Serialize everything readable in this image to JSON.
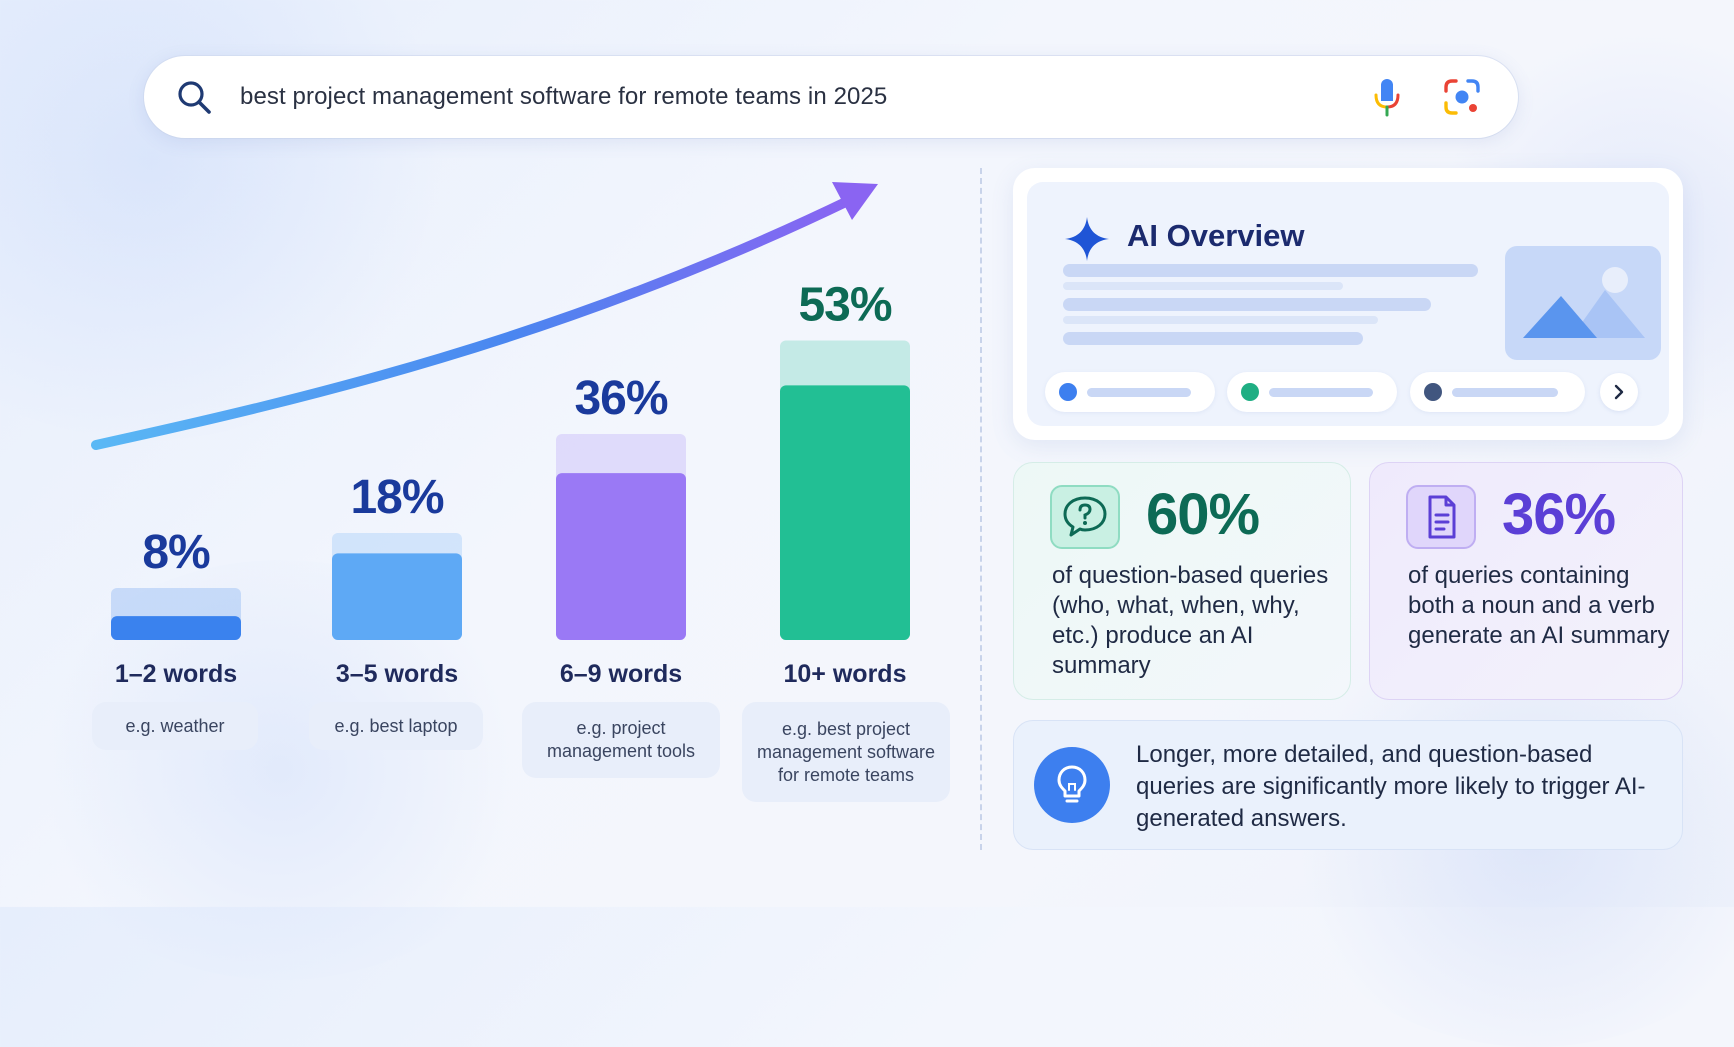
{
  "search": {
    "query": "best project management software for remote teams in 2025",
    "search_icon": "search-icon",
    "mic_icon": "microphone-icon",
    "lens_icon": "camera-lens-icon"
  },
  "chart_data": {
    "type": "bar",
    "categories": [
      "1–2 words",
      "3–5 words",
      "6–9 words",
      "10+ words"
    ],
    "values": [
      8,
      18,
      36,
      53
    ],
    "value_labels": [
      "8%",
      "18%",
      "36%",
      "53%"
    ],
    "examples": [
      "e.g. weather",
      "e.g. best laptop",
      "e.g. project management tools",
      "e.g. best project management software for remote teams"
    ],
    "colors": [
      "#3a82ee",
      "#5ea9f5",
      "#9a79f5",
      "#22bf94"
    ],
    "label_colors": [
      "#1a3a9c",
      "#1a3a9c",
      "#1a3a9c",
      "#0d6a55"
    ],
    "ylim": [
      0,
      60
    ],
    "trend_arrow": true,
    "grid": false
  },
  "ai_overview": {
    "title": "AI Overview",
    "icon": "sparkle-icon",
    "chip_dot_colors": [
      "#3d7fef",
      "#1fae83",
      "#41567f"
    ],
    "next_icon": "chevron-right-icon"
  },
  "stats": [
    {
      "value": "60%",
      "text": "of question-based queries (who, what, when, why, etc.) produce an AI summary",
      "icon": "question-bubble-icon",
      "color": "#0d6a55"
    },
    {
      "value": "36%",
      "text": "of queries containing both a noun and a verb generate an AI summary",
      "icon": "document-icon",
      "color": "#5b3fd6"
    }
  ],
  "tip": {
    "icon": "lightbulb-icon",
    "text": "Longer, more detailed, and question-based queries are significantly more likely to trigger AI-generated answers."
  }
}
